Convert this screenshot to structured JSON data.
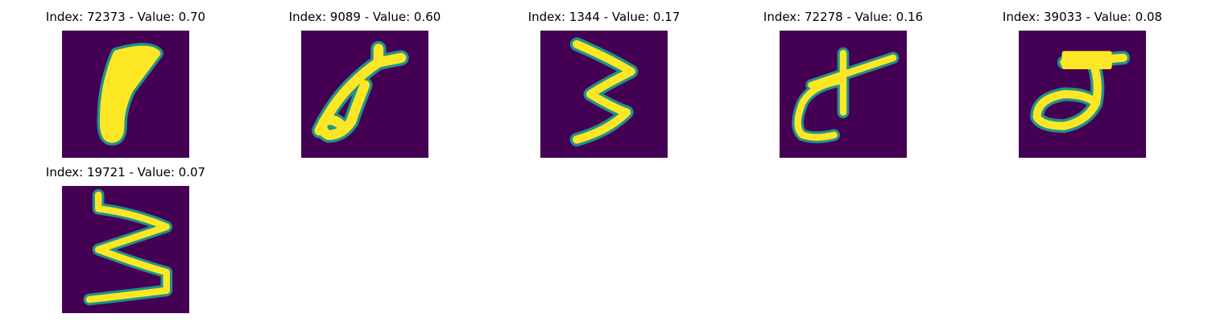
{
  "colors": {
    "background": "#440154",
    "mid": "#21918c",
    "stroke": "#fde725"
  },
  "panels": [
    {
      "title": "Index: 72373 - Value: 0.70"
    },
    {
      "title": "Index: 9089 - Value: 0.60"
    },
    {
      "title": "Index: 1344 - Value: 0.17"
    },
    {
      "title": "Index: 72278 - Value: 0.16"
    },
    {
      "title": "Index: 39033 - Value: 0.08"
    },
    {
      "title": "Index: 19721 - Value: 0.07"
    }
  ]
}
